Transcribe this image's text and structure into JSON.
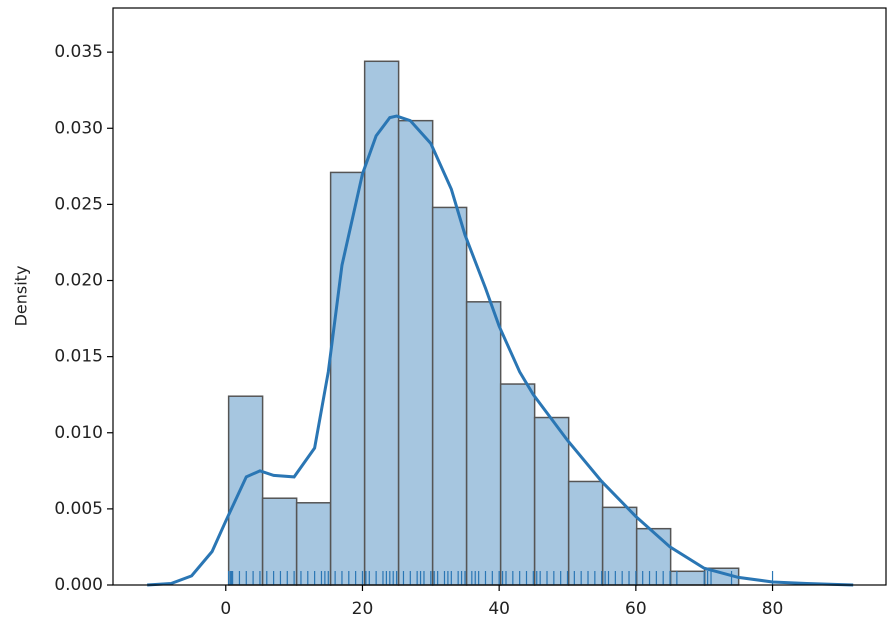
{
  "chart_data": {
    "type": "histogram",
    "ylabel": "Density",
    "bins": [
      0.42,
      5.39,
      10.37,
      15.34,
      20.32,
      25.29,
      30.27,
      35.24,
      40.22,
      45.19,
      50.17,
      55.14,
      60.12,
      65.09,
      70.07,
      75.04
    ],
    "values": [
      0.0124,
      0.0057,
      0.0054,
      0.0271,
      0.0344,
      0.0305,
      0.0248,
      0.0186,
      0.0132,
      0.011,
      0.0068,
      0.0051,
      0.0037,
      0.0009,
      0.0011
    ],
    "color": "#a6c6e0",
    "edgecolor": "#555555",
    "kde": {
      "color": "#2a76b4",
      "x": [
        -11.5,
        -8,
        -5,
        -2,
        0,
        3,
        5,
        7,
        10,
        13,
        15,
        17,
        20,
        22,
        24,
        25,
        27,
        30,
        33,
        35,
        38,
        40,
        43,
        45,
        50,
        55,
        60,
        65,
        70,
        75,
        80,
        85,
        91.8
      ],
      "values": [
        0.0,
        0.0001,
        0.0006,
        0.0022,
        0.0042,
        0.0071,
        0.0075,
        0.0072,
        0.0071,
        0.009,
        0.014,
        0.021,
        0.027,
        0.0295,
        0.0307,
        0.0308,
        0.0305,
        0.029,
        0.026,
        0.023,
        0.0195,
        0.017,
        0.014,
        0.0125,
        0.0095,
        0.0068,
        0.0045,
        0.0025,
        0.0011,
        0.0005,
        0.0002,
        0.0001,
        0.0
      ]
    },
    "rug": [
      0.42,
      0.67,
      0.83,
      0.92,
      1,
      2,
      3,
      4,
      5,
      6,
      7,
      8,
      9,
      10,
      11,
      12,
      13,
      14,
      14.5,
      15,
      16,
      17,
      18,
      19,
      20,
      20.5,
      21,
      22,
      23,
      23.5,
      24,
      24.5,
      25,
      26,
      27,
      28,
      28.5,
      29,
      30,
      30.5,
      31,
      32,
      32.5,
      33,
      34,
      34.5,
      35,
      36,
      36.5,
      37,
      38,
      39,
      40,
      40.5,
      41,
      42,
      43,
      44,
      45,
      45.5,
      46,
      47,
      48,
      49,
      50,
      51,
      52,
      53,
      54,
      55,
      55.5,
      56,
      57,
      58,
      59,
      60,
      61,
      62,
      63,
      64,
      65,
      66,
      70,
      70.5,
      71,
      74,
      80
    ],
    "xlim": [
      -16.5,
      96.6
    ],
    "ylim": [
      0,
      0.0379
    ],
    "xticks": [
      0,
      20,
      40,
      60,
      80
    ],
    "yticks": [
      {
        "value": 0,
        "label": "0.000"
      },
      {
        "value": 0.005,
        "label": "0.005"
      },
      {
        "value": 0.01,
        "label": "0.010"
      },
      {
        "value": 0.015,
        "label": "0.015"
      },
      {
        "value": 0.02,
        "label": "0.020"
      },
      {
        "value": 0.025,
        "label": "0.025"
      },
      {
        "value": 0.03,
        "label": "0.030"
      },
      {
        "value": 0.035,
        "label": "0.035"
      }
    ]
  }
}
